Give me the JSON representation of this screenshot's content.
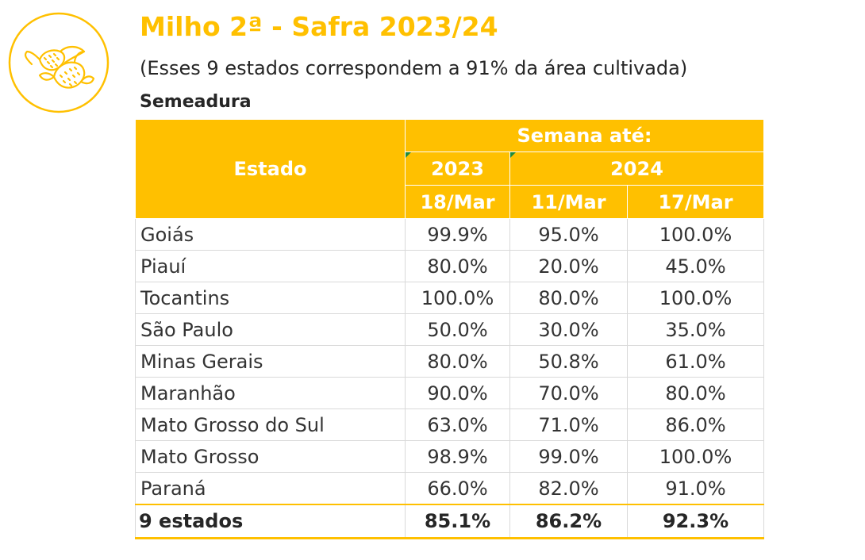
{
  "header": {
    "title": "Milho 2ª - Safra 2023/24",
    "subtitle": "(Esses 9 estados correspondem a 91% da área cultivada)",
    "section": "Semeadura"
  },
  "colors": {
    "accent": "#ffc000",
    "header_text": "#ffffff",
    "marker": "#1f8a3a"
  },
  "logo": {
    "icon": "corn-icon"
  },
  "table": {
    "estado_header": "Estado",
    "group_header": "Semana até:",
    "years": [
      "2023",
      "2024"
    ],
    "dates": [
      "18/Mar",
      "11/Mar",
      "17/Mar"
    ],
    "rows": [
      {
        "estado": "Goiás",
        "values": [
          "99.9%",
          "95.0%",
          "100.0%"
        ]
      },
      {
        "estado": "Piauí",
        "values": [
          "80.0%",
          "20.0%",
          "45.0%"
        ]
      },
      {
        "estado": "Tocantins",
        "values": [
          "100.0%",
          "80.0%",
          "100.0%"
        ]
      },
      {
        "estado": "São Paulo",
        "values": [
          "50.0%",
          "30.0%",
          "35.0%"
        ]
      },
      {
        "estado": "Minas Gerais",
        "values": [
          "80.0%",
          "50.8%",
          "61.0%"
        ]
      },
      {
        "estado": "Maranhão",
        "values": [
          "90.0%",
          "70.0%",
          "80.0%"
        ]
      },
      {
        "estado": "Mato Grosso do Sul",
        "values": [
          "63.0%",
          "71.0%",
          "86.0%"
        ]
      },
      {
        "estado": "Mato Grosso",
        "values": [
          "98.9%",
          "99.0%",
          "100.0%"
        ]
      },
      {
        "estado": "Paraná",
        "values": [
          "66.0%",
          "82.0%",
          "91.0%"
        ]
      }
    ],
    "total": {
      "label": "9 estados",
      "values": [
        "85.1%",
        "86.2%",
        "92.3%"
      ]
    }
  }
}
